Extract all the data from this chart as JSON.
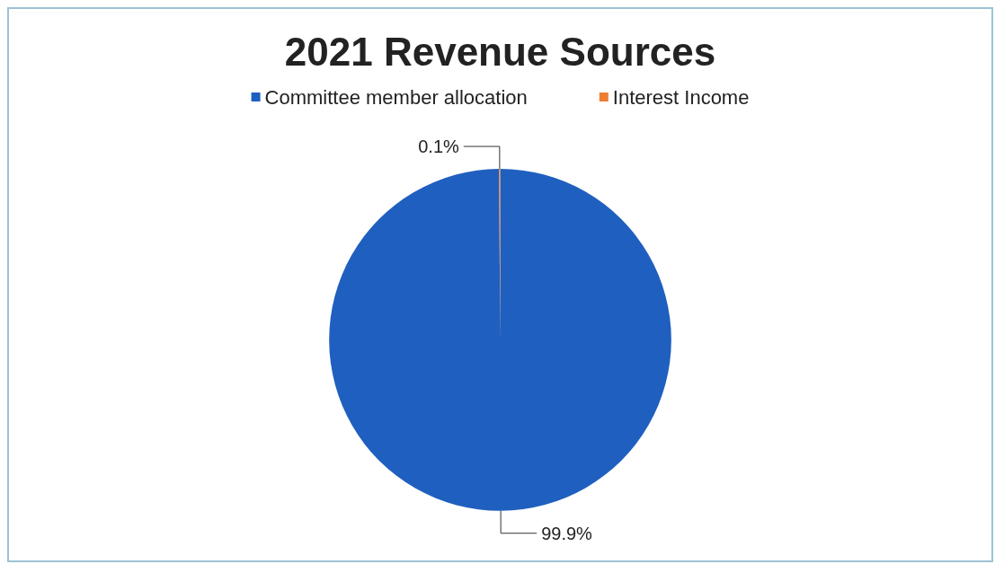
{
  "chart_data": {
    "type": "pie",
    "title": "2021 Revenue Sources",
    "categories": [
      "Committee member allocation",
      "Interest Income"
    ],
    "values": [
      99.9,
      0.1
    ],
    "colors": [
      "#1f5fbf",
      "#ed7d31"
    ],
    "value_labels": [
      "99.9%",
      "0.1%"
    ],
    "legend": "top"
  }
}
